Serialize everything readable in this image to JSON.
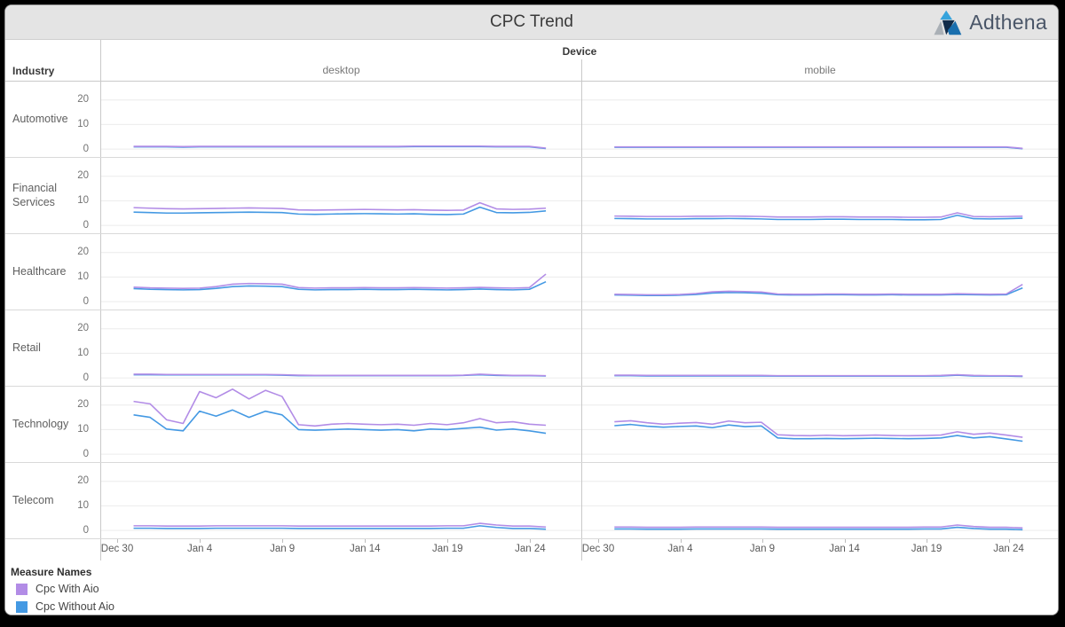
{
  "header": {
    "title": "CPC Trend",
    "brand": "Adthena"
  },
  "legend": {
    "title": "Measure Names",
    "items": [
      {
        "label": "Cpc With Aio",
        "color": "#b28ce6"
      },
      {
        "label": "Cpc Without Aio",
        "color": "#4499e3"
      }
    ]
  },
  "chart_data": {
    "type": "line",
    "title": "CPC Trend",
    "col_dimension": "Device",
    "row_dimension": "Industry",
    "devices": [
      "desktop",
      "mobile"
    ],
    "series_names": [
      "Cpc With Aio",
      "Cpc Without Aio"
    ],
    "series_colors": {
      "Cpc With Aio": "#b28ce6",
      "Cpc Without Aio": "#4499e3"
    },
    "ylim": [
      0,
      27.5
    ],
    "y_ticks": [
      20,
      10,
      0
    ],
    "grid": "horizontal-only",
    "legend_position": "bottom-left",
    "x": [
      "Dec 31",
      "Jan 1",
      "Jan 2",
      "Jan 3",
      "Jan 4",
      "Jan 5",
      "Jan 6",
      "Jan 7",
      "Jan 8",
      "Jan 9",
      "Jan 10",
      "Jan 11",
      "Jan 12",
      "Jan 13",
      "Jan 14",
      "Jan 15",
      "Jan 16",
      "Jan 17",
      "Jan 18",
      "Jan 19",
      "Jan 20",
      "Jan 21",
      "Jan 22",
      "Jan 23",
      "Jan 24",
      "Jan 25"
    ],
    "x_tick_labels": [
      "Dec 30",
      "Jan 4",
      "Jan 9",
      "Jan 14",
      "Jan 19",
      "Jan 24"
    ],
    "x_tick_day_offsets": [
      0,
      5,
      10,
      15,
      20,
      25
    ],
    "rows": [
      {
        "industry": "Automotive",
        "desktop": {
          "Cpc With Aio": [
            1.1,
            1.1,
            1.1,
            1.0,
            1.1,
            1.1,
            1.1,
            1.1,
            1.1,
            1.1,
            1.1,
            1.1,
            1.1,
            1.1,
            1.1,
            1.1,
            1.1,
            1.2,
            1.2,
            1.2,
            1.2,
            1.2,
            1.1,
            1.1,
            1.1,
            0.4
          ],
          "Cpc Without Aio": [
            0.9,
            0.9,
            0.9,
            0.8,
            0.9,
            0.9,
            0.9,
            0.9,
            0.9,
            0.9,
            0.9,
            0.9,
            0.9,
            0.9,
            0.9,
            0.9,
            0.9,
            1.0,
            1.0,
            1.0,
            1.0,
            1.0,
            0.9,
            0.9,
            0.9,
            0.2
          ]
        },
        "mobile": {
          "Cpc With Aio": [
            0.9,
            0.9,
            0.9,
            0.9,
            0.9,
            0.9,
            0.9,
            0.9,
            0.9,
            0.9,
            0.9,
            0.9,
            0.9,
            0.9,
            0.9,
            0.9,
            0.9,
            0.9,
            0.9,
            0.9,
            0.9,
            0.9,
            0.9,
            0.9,
            0.9,
            0.3
          ],
          "Cpc Without Aio": [
            0.7,
            0.7,
            0.7,
            0.7,
            0.7,
            0.7,
            0.7,
            0.7,
            0.7,
            0.7,
            0.7,
            0.7,
            0.7,
            0.7,
            0.7,
            0.7,
            0.7,
            0.7,
            0.7,
            0.7,
            0.7,
            0.7,
            0.7,
            0.7,
            0.7,
            0.15
          ]
        }
      },
      {
        "industry": "Financial Services",
        "desktop": {
          "Cpc With Aio": [
            7.2,
            7.0,
            6.8,
            6.7,
            6.8,
            6.9,
            7.0,
            7.1,
            7.0,
            6.9,
            6.3,
            6.2,
            6.3,
            6.4,
            6.5,
            6.4,
            6.3,
            6.4,
            6.2,
            6.1,
            6.2,
            9.2,
            6.7,
            6.5,
            6.6,
            7.0
          ],
          "Cpc Without Aio": [
            5.4,
            5.2,
            5.0,
            5.0,
            5.1,
            5.2,
            5.3,
            5.4,
            5.3,
            5.2,
            4.6,
            4.5,
            4.6,
            4.7,
            4.8,
            4.7,
            4.6,
            4.7,
            4.5,
            4.4,
            4.6,
            7.4,
            5.2,
            5.1,
            5.3,
            5.9
          ]
        },
        "mobile": {
          "Cpc With Aio": [
            3.8,
            3.7,
            3.6,
            3.6,
            3.6,
            3.7,
            3.7,
            3.8,
            3.7,
            3.6,
            3.4,
            3.4,
            3.4,
            3.5,
            3.5,
            3.4,
            3.4,
            3.4,
            3.3,
            3.3,
            3.4,
            5.1,
            3.6,
            3.5,
            3.6,
            3.7
          ],
          "Cpc Without Aio": [
            2.8,
            2.7,
            2.6,
            2.6,
            2.6,
            2.7,
            2.7,
            2.8,
            2.7,
            2.6,
            2.4,
            2.4,
            2.4,
            2.5,
            2.5,
            2.4,
            2.4,
            2.4,
            2.3,
            2.3,
            2.4,
            4.1,
            2.7,
            2.6,
            2.7,
            2.9
          ]
        }
      },
      {
        "industry": "Healthcare",
        "desktop": {
          "Cpc With Aio": [
            5.9,
            5.6,
            5.5,
            5.4,
            5.5,
            6.1,
            7.1,
            7.4,
            7.3,
            7.1,
            5.7,
            5.5,
            5.6,
            5.6,
            5.7,
            5.6,
            5.6,
            5.7,
            5.6,
            5.5,
            5.6,
            5.8,
            5.6,
            5.5,
            5.7,
            11.2
          ],
          "Cpc Without Aio": [
            5.3,
            5.0,
            4.9,
            4.8,
            4.9,
            5.4,
            6.1,
            6.4,
            6.3,
            6.1,
            5.0,
            4.8,
            4.9,
            4.9,
            5.0,
            4.9,
            4.9,
            5.0,
            4.9,
            4.8,
            4.9,
            5.1,
            4.9,
            4.8,
            5.0,
            8.1
          ]
        },
        "mobile": {
          "Cpc With Aio": [
            3.0,
            2.9,
            2.8,
            2.8,
            2.9,
            3.3,
            4.0,
            4.2,
            4.1,
            3.9,
            3.1,
            3.0,
            3.0,
            3.1,
            3.1,
            3.0,
            3.0,
            3.1,
            3.0,
            3.0,
            3.0,
            3.2,
            3.1,
            3.0,
            3.1,
            7.0
          ],
          "Cpc Without Aio": [
            2.7,
            2.6,
            2.5,
            2.5,
            2.6,
            2.9,
            3.5,
            3.7,
            3.6,
            3.4,
            2.8,
            2.7,
            2.7,
            2.8,
            2.8,
            2.7,
            2.7,
            2.8,
            2.7,
            2.7,
            2.7,
            2.9,
            2.8,
            2.7,
            2.8,
            5.6
          ]
        }
      },
      {
        "industry": "Retail",
        "desktop": {
          "Cpc With Aio": [
            1.5,
            1.5,
            1.4,
            1.4,
            1.4,
            1.4,
            1.4,
            1.4,
            1.4,
            1.3,
            1.1,
            1.0,
            1.0,
            1.0,
            1.0,
            1.0,
            1.0,
            1.0,
            1.0,
            1.0,
            1.1,
            1.5,
            1.2,
            1.0,
            1.0,
            0.9
          ],
          "Cpc Without Aio": [
            1.3,
            1.3,
            1.2,
            1.2,
            1.2,
            1.2,
            1.2,
            1.2,
            1.2,
            1.1,
            0.9,
            0.9,
            0.9,
            0.9,
            0.9,
            0.9,
            0.9,
            0.9,
            0.9,
            0.9,
            1.0,
            1.3,
            1.0,
            0.9,
            0.9,
            0.8
          ]
        },
        "mobile": {
          "Cpc With Aio": [
            1.1,
            1.1,
            1.0,
            1.0,
            1.0,
            1.0,
            1.0,
            1.0,
            1.0,
            1.0,
            0.9,
            0.9,
            0.9,
            0.9,
            0.9,
            0.9,
            0.9,
            0.9,
            0.9,
            0.9,
            1.0,
            1.3,
            1.0,
            0.9,
            0.9,
            0.8
          ],
          "Cpc Without Aio": [
            0.9,
            0.9,
            0.8,
            0.8,
            0.8,
            0.8,
            0.8,
            0.8,
            0.8,
            0.8,
            0.7,
            0.7,
            0.7,
            0.7,
            0.7,
            0.7,
            0.7,
            0.7,
            0.7,
            0.7,
            0.8,
            1.1,
            0.8,
            0.7,
            0.7,
            0.6
          ]
        }
      },
      {
        "industry": "Technology",
        "desktop": {
          "Cpc With Aio": [
            21.5,
            20.5,
            14.0,
            12.5,
            25.5,
            23.0,
            26.5,
            22.5,
            26.0,
            23.5,
            12.0,
            11.5,
            12.2,
            12.5,
            12.2,
            12.0,
            12.2,
            11.8,
            12.5,
            12.0,
            12.8,
            14.5,
            12.8,
            13.2,
            12.2,
            11.8
          ],
          "Cpc Without Aio": [
            16.0,
            15.0,
            10.2,
            9.5,
            17.5,
            15.5,
            18.0,
            15.0,
            17.5,
            16.0,
            10.0,
            9.8,
            10.0,
            10.2,
            10.0,
            9.8,
            10.0,
            9.5,
            10.2,
            10.0,
            10.5,
            11.0,
            9.8,
            10.2,
            9.5,
            8.5
          ]
        },
        "mobile": {
          "Cpc With Aio": [
            13.2,
            13.6,
            12.8,
            12.2,
            12.6,
            12.9,
            12.2,
            13.5,
            12.8,
            13.0,
            7.9,
            7.6,
            7.5,
            7.7,
            7.5,
            7.6,
            7.8,
            7.6,
            7.5,
            7.6,
            7.8,
            9.1,
            8.1,
            8.6,
            7.8,
            6.9
          ],
          "Cpc Without Aio": [
            11.6,
            12.1,
            11.4,
            11.0,
            11.3,
            11.5,
            10.8,
            11.9,
            11.2,
            11.5,
            6.6,
            6.3,
            6.3,
            6.4,
            6.3,
            6.4,
            6.5,
            6.4,
            6.3,
            6.4,
            6.6,
            7.6,
            6.6,
            7.1,
            6.2,
            5.3
          ]
        }
      },
      {
        "industry": "Telecom",
        "desktop": {
          "Cpc With Aio": [
            1.9,
            1.9,
            1.8,
            1.8,
            1.8,
            1.9,
            1.9,
            1.9,
            1.9,
            1.9,
            1.8,
            1.8,
            1.8,
            1.8,
            1.8,
            1.8,
            1.8,
            1.8,
            1.8,
            1.9,
            1.9,
            2.9,
            2.2,
            1.8,
            1.8,
            1.4
          ],
          "Cpc Without Aio": [
            0.9,
            0.9,
            0.8,
            0.8,
            0.8,
            0.9,
            0.9,
            0.9,
            0.9,
            0.9,
            0.8,
            0.8,
            0.8,
            0.8,
            0.8,
            0.8,
            0.8,
            0.8,
            0.8,
            0.9,
            0.9,
            1.9,
            1.2,
            0.8,
            0.8,
            0.5
          ]
        },
        "mobile": {
          "Cpc With Aio": [
            1.4,
            1.4,
            1.3,
            1.3,
            1.3,
            1.4,
            1.4,
            1.4,
            1.4,
            1.4,
            1.3,
            1.3,
            1.3,
            1.3,
            1.3,
            1.3,
            1.3,
            1.3,
            1.3,
            1.4,
            1.4,
            2.2,
            1.6,
            1.3,
            1.3,
            1.0
          ],
          "Cpc Without Aio": [
            0.6,
            0.6,
            0.5,
            0.5,
            0.5,
            0.6,
            0.6,
            0.6,
            0.6,
            0.6,
            0.5,
            0.5,
            0.5,
            0.5,
            0.5,
            0.5,
            0.5,
            0.5,
            0.5,
            0.6,
            0.6,
            1.3,
            0.8,
            0.5,
            0.5,
            0.3
          ]
        }
      }
    ]
  }
}
